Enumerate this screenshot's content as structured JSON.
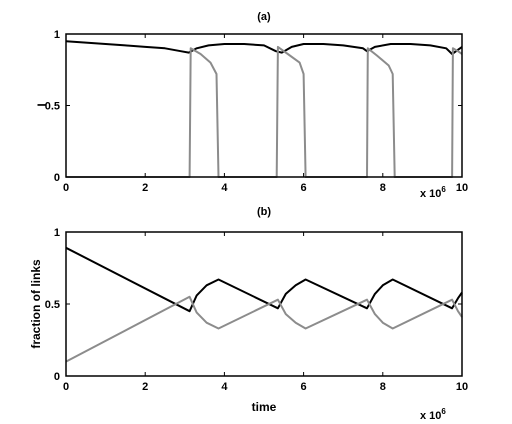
{
  "chart_data": [
    {
      "type": "line",
      "title": "(a)",
      "xlabel": "",
      "ylabel": "I",
      "xlim": [
        0,
        10
      ],
      "ylim": [
        0,
        1
      ],
      "x_ticks": [
        "0",
        "2",
        "4",
        "6",
        "8",
        "10"
      ],
      "y_ticks": [
        "0",
        "0.5",
        "1"
      ],
      "x_multiplier_base": "x 10",
      "x_multiplier_exp": "6",
      "colors": {
        "black_series": "#000000",
        "gray_series": "#8c8c8c"
      },
      "series": [
        {
          "color": "black",
          "x": [
            0,
            0.5,
            1,
            1.5,
            2,
            2.5,
            2.9,
            3.1,
            3.3,
            3.6,
            4.0,
            4.5,
            5.0,
            5.3,
            5.45,
            5.7,
            6.0,
            6.5,
            7.0,
            7.5,
            7.6,
            7.8,
            8.2,
            8.7,
            9.2,
            9.6,
            9.75,
            10
          ],
          "y": [
            0.95,
            0.94,
            0.93,
            0.92,
            0.91,
            0.9,
            0.88,
            0.87,
            0.9,
            0.92,
            0.93,
            0.93,
            0.92,
            0.88,
            0.87,
            0.91,
            0.93,
            0.93,
            0.92,
            0.9,
            0.88,
            0.91,
            0.93,
            0.93,
            0.92,
            0.9,
            0.86,
            0.91
          ]
        },
        {
          "color": "gray",
          "x": [
            0,
            3.12,
            3.15,
            3.4,
            3.65,
            3.8,
            3.85,
            5.32,
            5.35,
            5.6,
            5.9,
            6.0,
            6.05,
            7.6,
            7.62,
            7.85,
            8.15,
            8.25,
            8.3,
            9.75,
            9.77,
            9.9,
            10
          ],
          "y": [
            0,
            0,
            0.9,
            0.86,
            0.8,
            0.72,
            0,
            0,
            0.91,
            0.86,
            0.8,
            0.72,
            0,
            0,
            0.9,
            0.85,
            0.78,
            0.72,
            0,
            0,
            0.9,
            0.88,
            0.86
          ]
        }
      ]
    },
    {
      "type": "line",
      "title": "(b)",
      "xlabel": "time",
      "ylabel": "fraction of links",
      "xlim": [
        0,
        10
      ],
      "ylim": [
        0,
        1
      ],
      "x_ticks": [
        "0",
        "2",
        "4",
        "6",
        "8",
        "10"
      ],
      "y_ticks": [
        "0",
        "0.5",
        "1"
      ],
      "x_multiplier_base": "x 10",
      "x_multiplier_exp": "6",
      "series": [
        {
          "color": "black",
          "x": [
            0,
            3.12,
            3.3,
            3.55,
            3.85,
            5.35,
            5.55,
            5.8,
            6.05,
            7.6,
            7.8,
            8.0,
            8.25,
            9.75,
            9.9,
            10
          ],
          "y": [
            0.89,
            0.45,
            0.56,
            0.63,
            0.67,
            0.47,
            0.57,
            0.63,
            0.67,
            0.47,
            0.57,
            0.63,
            0.67,
            0.47,
            0.54,
            0.58
          ]
        },
        {
          "color": "gray",
          "x": [
            0,
            3.12,
            3.3,
            3.55,
            3.85,
            5.35,
            5.55,
            5.8,
            6.05,
            7.6,
            7.8,
            8.0,
            8.25,
            9.75,
            9.9,
            10
          ],
          "y": [
            0.1,
            0.55,
            0.44,
            0.37,
            0.33,
            0.53,
            0.43,
            0.37,
            0.33,
            0.53,
            0.43,
            0.37,
            0.33,
            0.53,
            0.45,
            0.41
          ]
        }
      ]
    }
  ]
}
